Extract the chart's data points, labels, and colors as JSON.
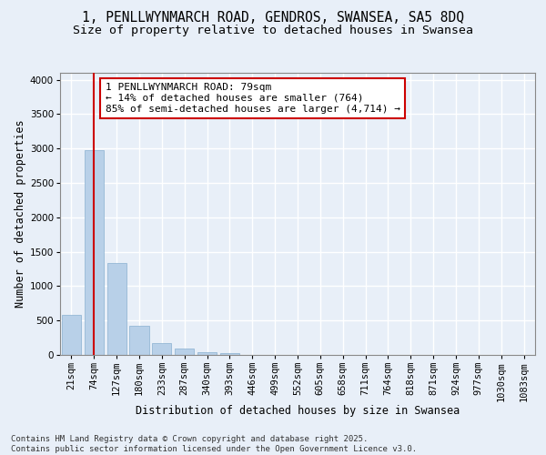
{
  "title_line1": "1, PENLLWYNMARCH ROAD, GENDROS, SWANSEA, SA5 8DQ",
  "title_line2": "Size of property relative to detached houses in Swansea",
  "xlabel": "Distribution of detached houses by size in Swansea",
  "ylabel": "Number of detached properties",
  "bar_labels": [
    "21sqm",
    "74sqm",
    "127sqm",
    "180sqm",
    "233sqm",
    "287sqm",
    "340sqm",
    "393sqm",
    "446sqm",
    "499sqm",
    "552sqm",
    "605sqm",
    "658sqm",
    "711sqm",
    "764sqm",
    "818sqm",
    "871sqm",
    "924sqm",
    "977sqm",
    "1030sqm",
    "1083sqm"
  ],
  "bar_values": [
    580,
    2980,
    1340,
    420,
    175,
    90,
    45,
    25,
    5,
    0,
    0,
    0,
    0,
    0,
    0,
    0,
    0,
    0,
    0,
    0,
    0
  ],
  "bar_color": "#b8d0e8",
  "bar_edge_color": "#8ab0d0",
  "background_color": "#e8eff8",
  "fig_background_color": "#e8eff8",
  "grid_color": "#ffffff",
  "annotation_text": "1 PENLLWYNMARCH ROAD: 79sqm\n← 14% of detached houses are smaller (764)\n85% of semi-detached houses are larger (4,714) →",
  "annotation_box_color": "#ffffff",
  "annotation_box_edge_color": "#cc0000",
  "vline_x": 1,
  "vline_color": "#cc0000",
  "ylim": [
    0,
    4100
  ],
  "yticks": [
    0,
    500,
    1000,
    1500,
    2000,
    2500,
    3000,
    3500,
    4000
  ],
  "footer_text": "Contains HM Land Registry data © Crown copyright and database right 2025.\nContains public sector information licensed under the Open Government Licence v3.0.",
  "title_fontsize": 10.5,
  "subtitle_fontsize": 9.5,
  "axis_label_fontsize": 8.5,
  "tick_fontsize": 7.5,
  "annotation_fontsize": 8,
  "footer_fontsize": 6.5
}
